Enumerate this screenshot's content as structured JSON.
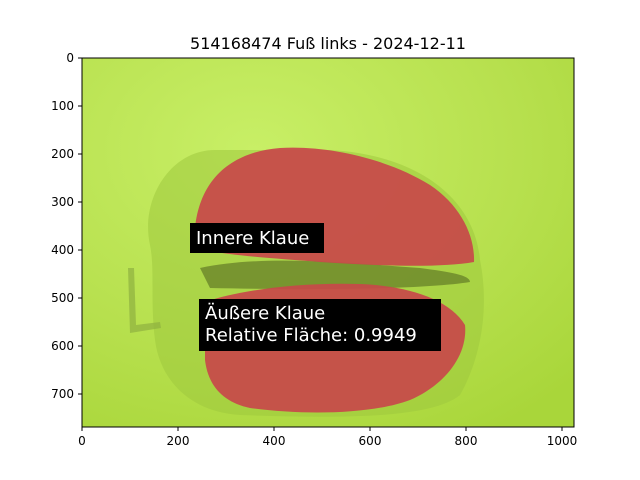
{
  "figure": {
    "title": "514168474 Fuß links - 2024-12-11"
  },
  "axes": {
    "x_ticks": [
      "0",
      "200",
      "400",
      "600",
      "800",
      "1000"
    ],
    "y_ticks": [
      "0",
      "100",
      "200",
      "300",
      "400",
      "500",
      "600",
      "700"
    ],
    "x_range": [
      0,
      1024
    ],
    "y_range": [
      0,
      768
    ]
  },
  "annotations": {
    "inner_claw": {
      "label": "Innere Klaue"
    },
    "outer_claw": {
      "label": "Äußere Klaue",
      "relative_area": "Relative Fläche: 0.9949"
    }
  },
  "colors": {
    "background_green": "#b4e04a",
    "mask_red": "#c8484a",
    "label_box": "#000000"
  }
}
